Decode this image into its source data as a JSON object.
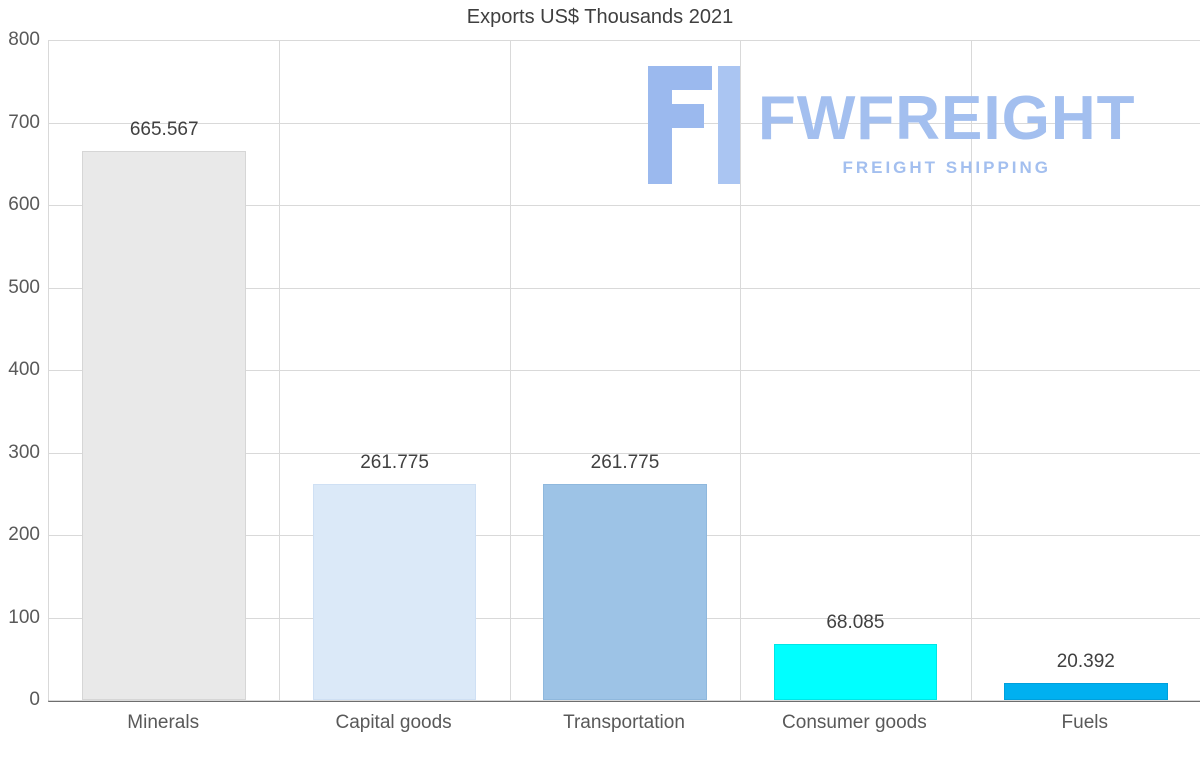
{
  "title": "Exports US$ Thousands 2021",
  "watermark": {
    "brand": "FWFREIGHT",
    "tagline": "FREIGHT SHIPPING",
    "color": "#a3bfef"
  },
  "chart_data": {
    "type": "bar",
    "title": "Exports US$ Thousands 2021",
    "categories": [
      "Minerals",
      "Capital goods",
      "Transportation",
      "Consumer goods",
      "Fuels"
    ],
    "values": [
      665.567,
      261.775,
      261.775,
      68.085,
      20.392
    ],
    "value_labels": [
      "665.567",
      "261.775",
      "261.775",
      "68.085",
      "20.392"
    ],
    "bar_colors": [
      "#e9e9e9",
      "#dbe9f8",
      "#9dc3e6",
      "#00ffff",
      "#00b0f0"
    ],
    "bar_borders": [
      "#d6d6d6",
      "#cfe0f4",
      "#8fb8dd",
      "#00e6e6",
      "#00a0dc"
    ],
    "xlabel": "",
    "ylabel": "",
    "ylim": [
      0,
      800
    ],
    "yticks": [
      0,
      100,
      200,
      300,
      400,
      500,
      600,
      700,
      800
    ],
    "grid": true,
    "grid_color": "#d9d9d9",
    "axis_color": "#6e6e6e",
    "legend": "none"
  }
}
